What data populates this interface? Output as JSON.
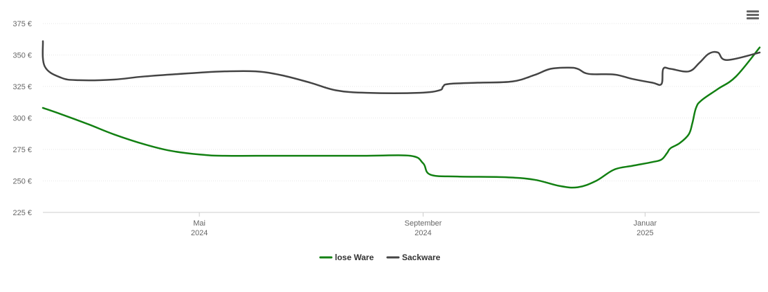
{
  "chart_data": {
    "type": "line",
    "y_unit": "€",
    "ylim": [
      225,
      375
    ],
    "y_ticks": [
      "375 €",
      "350 €",
      "325 €",
      "300 €",
      "275 €",
      "250 €",
      "225 €"
    ],
    "y_tick_values": [
      375,
      350,
      325,
      300,
      275,
      250,
      225
    ],
    "xlim": [
      "2024-02-05",
      "2025-03-05"
    ],
    "x_ticks": [
      {
        "date": "2024-05-01",
        "month": "Mai",
        "year": "2024"
      },
      {
        "date": "2024-09-01",
        "month": "September",
        "year": "2024"
      },
      {
        "date": "2025-01-01",
        "month": "Januar",
        "year": "2025"
      }
    ],
    "grid": true,
    "legend_position": "bottom-center",
    "series": [
      {
        "name": "lose Ware",
        "color": "#128012",
        "points": [
          [
            "2024-02-05",
            308
          ],
          [
            "2024-02-15",
            303
          ],
          [
            "2024-03-01",
            295
          ],
          [
            "2024-03-15",
            287
          ],
          [
            "2024-04-01",
            279
          ],
          [
            "2024-04-15",
            274
          ],
          [
            "2024-05-01",
            271
          ],
          [
            "2024-05-15",
            270
          ],
          [
            "2024-06-15",
            270
          ],
          [
            "2024-08-01",
            270
          ],
          [
            "2024-08-25",
            270
          ],
          [
            "2024-09-01",
            264
          ],
          [
            "2024-09-05",
            255
          ],
          [
            "2024-09-20",
            253.5
          ],
          [
            "2024-10-15",
            253
          ],
          [
            "2024-11-01",
            251
          ],
          [
            "2024-11-15",
            246
          ],
          [
            "2024-11-25",
            245
          ],
          [
            "2024-12-05",
            250
          ],
          [
            "2024-12-15",
            259
          ],
          [
            "2024-12-25",
            262
          ],
          [
            "2025-01-05",
            265
          ],
          [
            "2025-01-10",
            267
          ],
          [
            "2025-01-13",
            272
          ],
          [
            "2025-01-15",
            276
          ],
          [
            "2025-01-20",
            280
          ],
          [
            "2025-01-25",
            287
          ],
          [
            "2025-01-27",
            296
          ],
          [
            "2025-01-29",
            308
          ],
          [
            "2025-02-01",
            314
          ],
          [
            "2025-02-10",
            323
          ],
          [
            "2025-02-20",
            333
          ],
          [
            "2025-03-05",
            356
          ]
        ]
      },
      {
        "name": "Sackware",
        "color": "#444444",
        "points": [
          [
            "2024-02-05",
            361
          ],
          [
            "2024-02-06",
            341
          ],
          [
            "2024-02-15",
            332
          ],
          [
            "2024-02-25",
            330
          ],
          [
            "2024-03-15",
            330.5
          ],
          [
            "2024-04-01",
            333
          ],
          [
            "2024-05-01",
            336
          ],
          [
            "2024-05-15",
            337
          ],
          [
            "2024-06-01",
            337
          ],
          [
            "2024-06-15",
            334
          ],
          [
            "2024-07-01",
            328
          ],
          [
            "2024-07-15",
            322
          ],
          [
            "2024-08-01",
            320
          ],
          [
            "2024-08-30",
            320
          ],
          [
            "2024-09-10",
            322
          ],
          [
            "2024-09-12",
            325
          ],
          [
            "2024-09-15",
            327
          ],
          [
            "2024-10-01",
            328
          ],
          [
            "2024-10-20",
            329
          ],
          [
            "2024-11-01",
            334
          ],
          [
            "2024-11-10",
            339
          ],
          [
            "2024-11-20",
            340
          ],
          [
            "2024-11-25",
            339
          ],
          [
            "2024-12-01",
            335
          ],
          [
            "2024-12-15",
            334.5
          ],
          [
            "2024-12-25",
            331
          ],
          [
            "2025-01-05",
            328
          ],
          [
            "2025-01-10",
            327
          ],
          [
            "2025-01-11",
            339
          ],
          [
            "2025-01-15",
            339
          ],
          [
            "2025-01-25",
            337
          ],
          [
            "2025-01-31",
            344
          ],
          [
            "2025-02-05",
            351
          ],
          [
            "2025-02-10",
            352
          ],
          [
            "2025-02-15",
            346
          ],
          [
            "2025-03-05",
            352
          ]
        ]
      }
    ]
  },
  "toolbar": {
    "menu_icon": "hamburger-menu-icon"
  }
}
